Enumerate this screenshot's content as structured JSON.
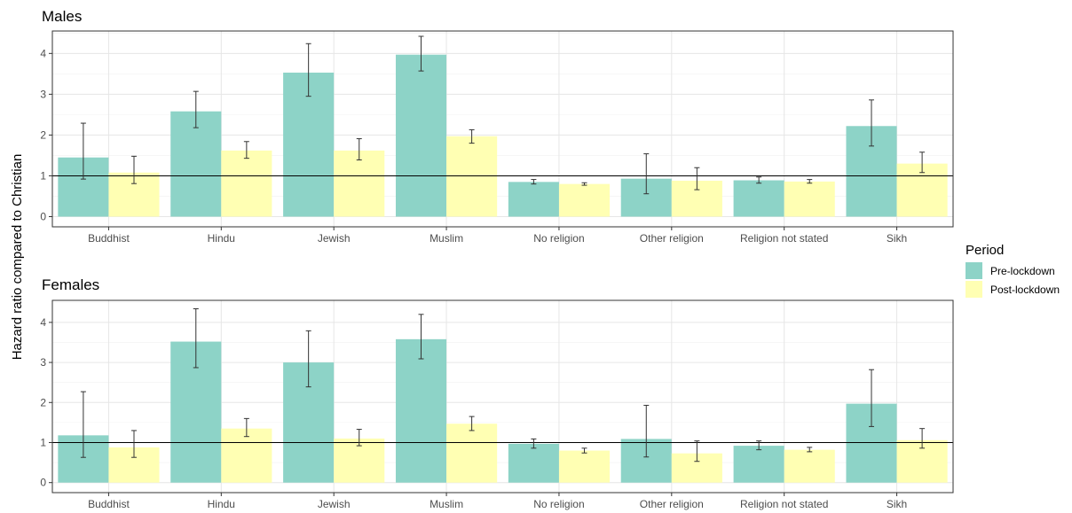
{
  "chart_data": {
    "type": "bar",
    "ylabel": "Hazard ratio compared to Christian",
    "categories": [
      "Buddhist",
      "Hindu",
      "Jewish",
      "Muslim",
      "No religion",
      "Other religion",
      "Religion not stated",
      "Sikh"
    ],
    "ylim": [
      -0.25,
      4.55
    ],
    "yticks": [
      0,
      1,
      2,
      3,
      4
    ],
    "reference_line": 1,
    "grid": true,
    "legend": {
      "title": "Period",
      "position": "right",
      "entries": [
        {
          "name": "Pre-lockdown",
          "color": "#8dd3c7"
        },
        {
          "name": "Post-lockdown",
          "color": "#ffffb3"
        }
      ]
    },
    "panels": [
      {
        "title": "Males",
        "series": [
          {
            "name": "Pre-lockdown",
            "values": [
              1.45,
              2.58,
              3.53,
              3.97,
              0.85,
              0.93,
              0.89,
              2.22
            ],
            "lower": [
              0.92,
              2.18,
              2.95,
              3.57,
              0.8,
              0.56,
              0.82,
              1.73
            ],
            "upper": [
              2.29,
              3.07,
              4.24,
              4.42,
              0.91,
              1.54,
              0.97,
              2.86
            ]
          },
          {
            "name": "Post-lockdown",
            "values": [
              1.08,
              1.62,
              1.62,
              1.97,
              0.8,
              0.88,
              0.86,
              1.3
            ],
            "lower": [
              0.81,
              1.43,
              1.39,
              1.8,
              0.77,
              0.66,
              0.82,
              1.08
            ],
            "upper": [
              1.48,
              1.84,
              1.91,
              2.13,
              0.83,
              1.2,
              0.91,
              1.58
            ]
          }
        ]
      },
      {
        "title": "Females",
        "series": [
          {
            "name": "Pre-lockdown",
            "values": [
              1.18,
              3.52,
              3.0,
              3.58,
              0.97,
              1.09,
              0.92,
              1.97
            ],
            "lower": [
              0.63,
              2.87,
              2.39,
              3.09,
              0.86,
              0.64,
              0.82,
              1.4
            ],
            "upper": [
              2.27,
              4.34,
              3.79,
              4.2,
              1.09,
              1.93,
              1.04,
              2.82
            ]
          },
          {
            "name": "Post-lockdown",
            "values": [
              0.88,
              1.35,
              1.1,
              1.47,
              0.8,
              0.73,
              0.82,
              1.06
            ],
            "lower": [
              0.63,
              1.15,
              0.92,
              1.3,
              0.74,
              0.53,
              0.77,
              0.86
            ],
            "upper": [
              1.3,
              1.6,
              1.33,
              1.65,
              0.86,
              1.04,
              0.88,
              1.35
            ]
          }
        ]
      }
    ]
  }
}
